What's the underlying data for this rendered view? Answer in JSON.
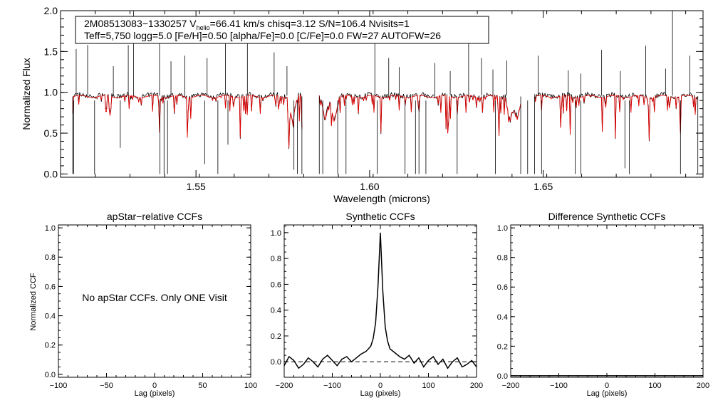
{
  "colors": {
    "observed": "#000000",
    "model": "#e00000",
    "axis": "#000000"
  },
  "chart_data": [
    {
      "type": "line",
      "id": "spectrum",
      "info_line1_pre": "2M08513083−1330257  V",
      "info_line1_sub": "helio",
      "info_line1_post": "=66.41 km/s  chisq=3.12  S/N=106.4  Nvisits=1",
      "info_line2": "Teff=5,750 logg=5.0 [Fe/H]=0.50 [alpha/Fe]=0.0 [C/Fe]=0.0 FW=27 AUTOFW=26",
      "xlabel": "Wavelength (microns)",
      "ylabel": "Normalized Flux",
      "xlim": [
        1.511,
        1.696
      ],
      "ylim": [
        -0.04,
        2.0
      ],
      "xticks": [
        1.55,
        1.6,
        1.65
      ],
      "xtick_labels": [
        "1.55",
        "1.60",
        "1.65"
      ],
      "yticks": [
        0.0,
        0.5,
        1.0,
        1.5,
        2.0
      ],
      "ytick_labels": [
        "0.0",
        "0.5",
        "1.0",
        "1.5",
        "2.0"
      ],
      "chips": [
        [
          1.5145,
          1.5805
        ],
        [
          1.5855,
          1.6435
        ],
        [
          1.6475,
          1.6945
        ]
      ],
      "emission_lines": [
        [
          1.5155,
          1.53
        ],
        [
          1.5188,
          1.58
        ],
        [
          1.5262,
          1.32
        ],
        [
          1.5305,
          1.58
        ],
        [
          1.532,
          2.0
        ],
        [
          1.5395,
          1.62
        ],
        [
          1.5428,
          1.38
        ],
        [
          1.5468,
          1.45
        ],
        [
          1.5532,
          1.42
        ],
        [
          1.5585,
          1.88
        ],
        [
          1.5648,
          1.63
        ],
        [
          1.5725,
          1.49
        ],
        [
          1.5762,
          1.32
        ],
        [
          1.6015,
          1.62
        ],
        [
          1.6055,
          1.42
        ],
        [
          1.6085,
          1.31
        ],
        [
          1.6188,
          1.36
        ],
        [
          1.6232,
          1.26
        ],
        [
          1.6285,
          1.93
        ],
        [
          1.6322,
          1.42
        ],
        [
          1.6355,
          1.28
        ],
        [
          1.6395,
          1.39
        ],
        [
          1.6485,
          1.45
        ],
        [
          1.6572,
          1.27
        ],
        [
          1.6608,
          1.23
        ],
        [
          1.6668,
          1.52
        ],
        [
          1.6722,
          1.26
        ],
        [
          1.6795,
          1.57
        ],
        [
          1.6852,
          1.29
        ],
        [
          1.6872,
          2.0
        ],
        [
          1.6922,
          1.45
        ]
      ],
      "absorption_lines": [
        [
          1.5148,
          0.0
        ],
        [
          1.5208,
          0.0
        ],
        [
          1.5282,
          0.32
        ],
        [
          1.5396,
          0.0
        ],
        [
          1.5408,
          0.0
        ],
        [
          1.5418,
          0.0
        ],
        [
          1.5525,
          0.12
        ],
        [
          1.5563,
          0.0
        ],
        [
          1.5592,
          0.36
        ],
        [
          1.5782,
          0.05
        ],
        [
          1.5792,
          0.0
        ],
        [
          1.5865,
          0.0
        ],
        [
          1.5908,
          0.0
        ],
        [
          1.5932,
          0.0
        ],
        [
          1.6022,
          0.0
        ],
        [
          1.6102,
          0.0
        ],
        [
          1.6132,
          0.0
        ],
        [
          1.6142,
          0.0
        ],
        [
          1.6162,
          0.0
        ],
        [
          1.6252,
          0.0
        ],
        [
          1.6362,
          0.0
        ],
        [
          1.6455,
          0.0
        ],
        [
          1.6495,
          0.0
        ],
        [
          1.6592,
          0.0
        ],
        [
          1.6608,
          0.0
        ],
        [
          1.6735,
          0.07
        ],
        [
          1.6748,
          0.0
        ],
        [
          1.6895,
          0.0
        ]
      ],
      "series": [
        {
          "role": "observed",
          "style": "black line"
        },
        {
          "role": "model",
          "style": "red line"
        }
      ]
    },
    {
      "type": "line",
      "id": "apstar-ccf",
      "title": "apStar−relative CCFs",
      "xlabel": "Lag (pixels)",
      "ylabel": "Normalized CCF",
      "xlim": [
        -100,
        100
      ],
      "ylim": [
        -0.02,
        1.02
      ],
      "xticks": [
        -100,
        -50,
        0,
        50,
        100
      ],
      "xtick_labels": [
        "−100",
        "−50",
        "0",
        "50",
        "100"
      ],
      "yticks": [
        0.0,
        0.2,
        0.4,
        0.6,
        0.8,
        1.0
      ],
      "ytick_labels": [
        "0.0",
        "0.2",
        "0.4",
        "0.6",
        "0.8",
        "1.0"
      ],
      "message": "No apStar CCFs.  Only ONE Visit"
    },
    {
      "type": "line",
      "id": "synthetic-ccf",
      "title": "Synthetic CCFs",
      "xlabel": "Lag (pixels)",
      "xlim": [
        -200,
        200
      ],
      "ylim": [
        -0.12,
        1.06
      ],
      "xticks": [
        -200,
        -100,
        0,
        100,
        200
      ],
      "xtick_labels": [
        "−200",
        "−100",
        "0",
        "100",
        "200"
      ],
      "yticks": [
        0.0,
        0.2,
        0.4,
        0.6,
        0.8,
        1.0
      ],
      "ytick_labels": [
        "0.0",
        "0.2",
        "0.4",
        "0.6",
        "0.8",
        "1.0"
      ],
      "zero_line": 0.0,
      "x": [
        -200,
        -190,
        -180,
        -170,
        -160,
        -150,
        -140,
        -130,
        -120,
        -110,
        -100,
        -90,
        -80,
        -70,
        -60,
        -50,
        -40,
        -30,
        -20,
        -15,
        -10,
        -5,
        0,
        5,
        10,
        15,
        20,
        30,
        40,
        50,
        60,
        70,
        80,
        90,
        100,
        110,
        120,
        130,
        140,
        150,
        160,
        170,
        180,
        190,
        200
      ],
      "y": [
        -0.03,
        0.04,
        0.01,
        -0.05,
        -0.02,
        0.03,
        0.0,
        -0.04,
        0.02,
        0.05,
        0.01,
        -0.03,
        0.02,
        0.04,
        0.0,
        0.03,
        0.06,
        0.08,
        0.12,
        0.18,
        0.3,
        0.58,
        1.0,
        0.55,
        0.27,
        0.16,
        0.1,
        0.07,
        0.04,
        0.02,
        0.05,
        -0.01,
        0.03,
        -0.04,
        0.01,
        0.04,
        -0.02,
        0.02,
        -0.05,
        0.0,
        0.03,
        -0.04,
        -0.02,
        0.01,
        -0.04
      ]
    },
    {
      "type": "line",
      "id": "difference-ccf",
      "title": "Difference Synthetic CCFs",
      "xlabel": "Lag (pixels)",
      "xlim": [
        -200,
        200
      ],
      "ylim": [
        -0.01,
        1.02
      ],
      "xticks": [
        -200,
        -100,
        0,
        100,
        200
      ],
      "xtick_labels": [
        "−200",
        "−100",
        "0",
        "100",
        "200"
      ],
      "yticks": [
        0.0,
        0.2,
        0.4,
        0.6,
        0.8,
        1.0
      ],
      "ytick_labels": [
        "0.0",
        "0.2",
        "0.4",
        "0.6",
        "0.8",
        "1.0"
      ],
      "x": [
        -200,
        200
      ],
      "y": [
        0.0,
        0.0
      ]
    }
  ]
}
